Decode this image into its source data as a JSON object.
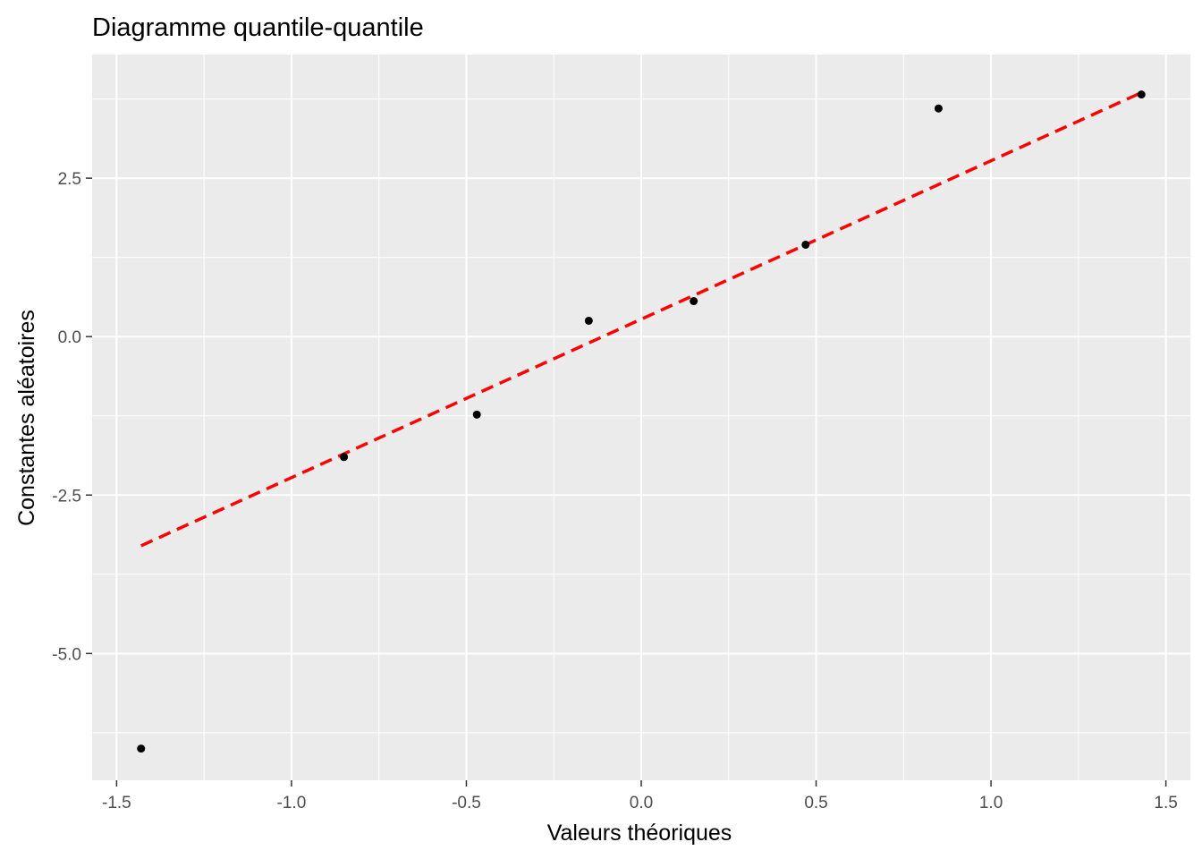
{
  "chart_data": {
    "type": "scatter",
    "title": "Diagramme quantile-quantile",
    "xlabel": "Valeurs théoriques",
    "ylabel": "Constantes aléatoires",
    "xlim": [
      -1.57,
      1.57
    ],
    "ylim": [
      -7.0,
      4.45
    ],
    "x_ticks": [
      -1.5,
      -1.0,
      -0.5,
      0.0,
      0.5,
      1.0,
      1.5
    ],
    "x_tick_labels": [
      "-1.5",
      "-1.0",
      "-0.5",
      "0.0",
      "0.5",
      "1.0",
      "1.5"
    ],
    "y_ticks": [
      -5.0,
      -2.5,
      0.0,
      2.5
    ],
    "y_tick_labels": [
      "-5.0",
      "-2.5",
      "0.0",
      "2.5"
    ],
    "grid": true,
    "background_color": "#ebebeb",
    "gridline_color": "#ffffff",
    "point_color": "#000000",
    "points": [
      {
        "x": -1.43,
        "y": -6.5
      },
      {
        "x": -0.85,
        "y": -1.9
      },
      {
        "x": -0.47,
        "y": -1.23
      },
      {
        "x": -0.15,
        "y": 0.25
      },
      {
        "x": 0.15,
        "y": 0.56
      },
      {
        "x": 0.47,
        "y": 1.45
      },
      {
        "x": 0.85,
        "y": 3.6
      },
      {
        "x": 1.43,
        "y": 3.82
      }
    ],
    "reference_line": {
      "style": "dashed",
      "color": "#ff0000",
      "x": [
        -1.43,
        1.43
      ],
      "y": [
        -3.3,
        3.85
      ]
    }
  }
}
